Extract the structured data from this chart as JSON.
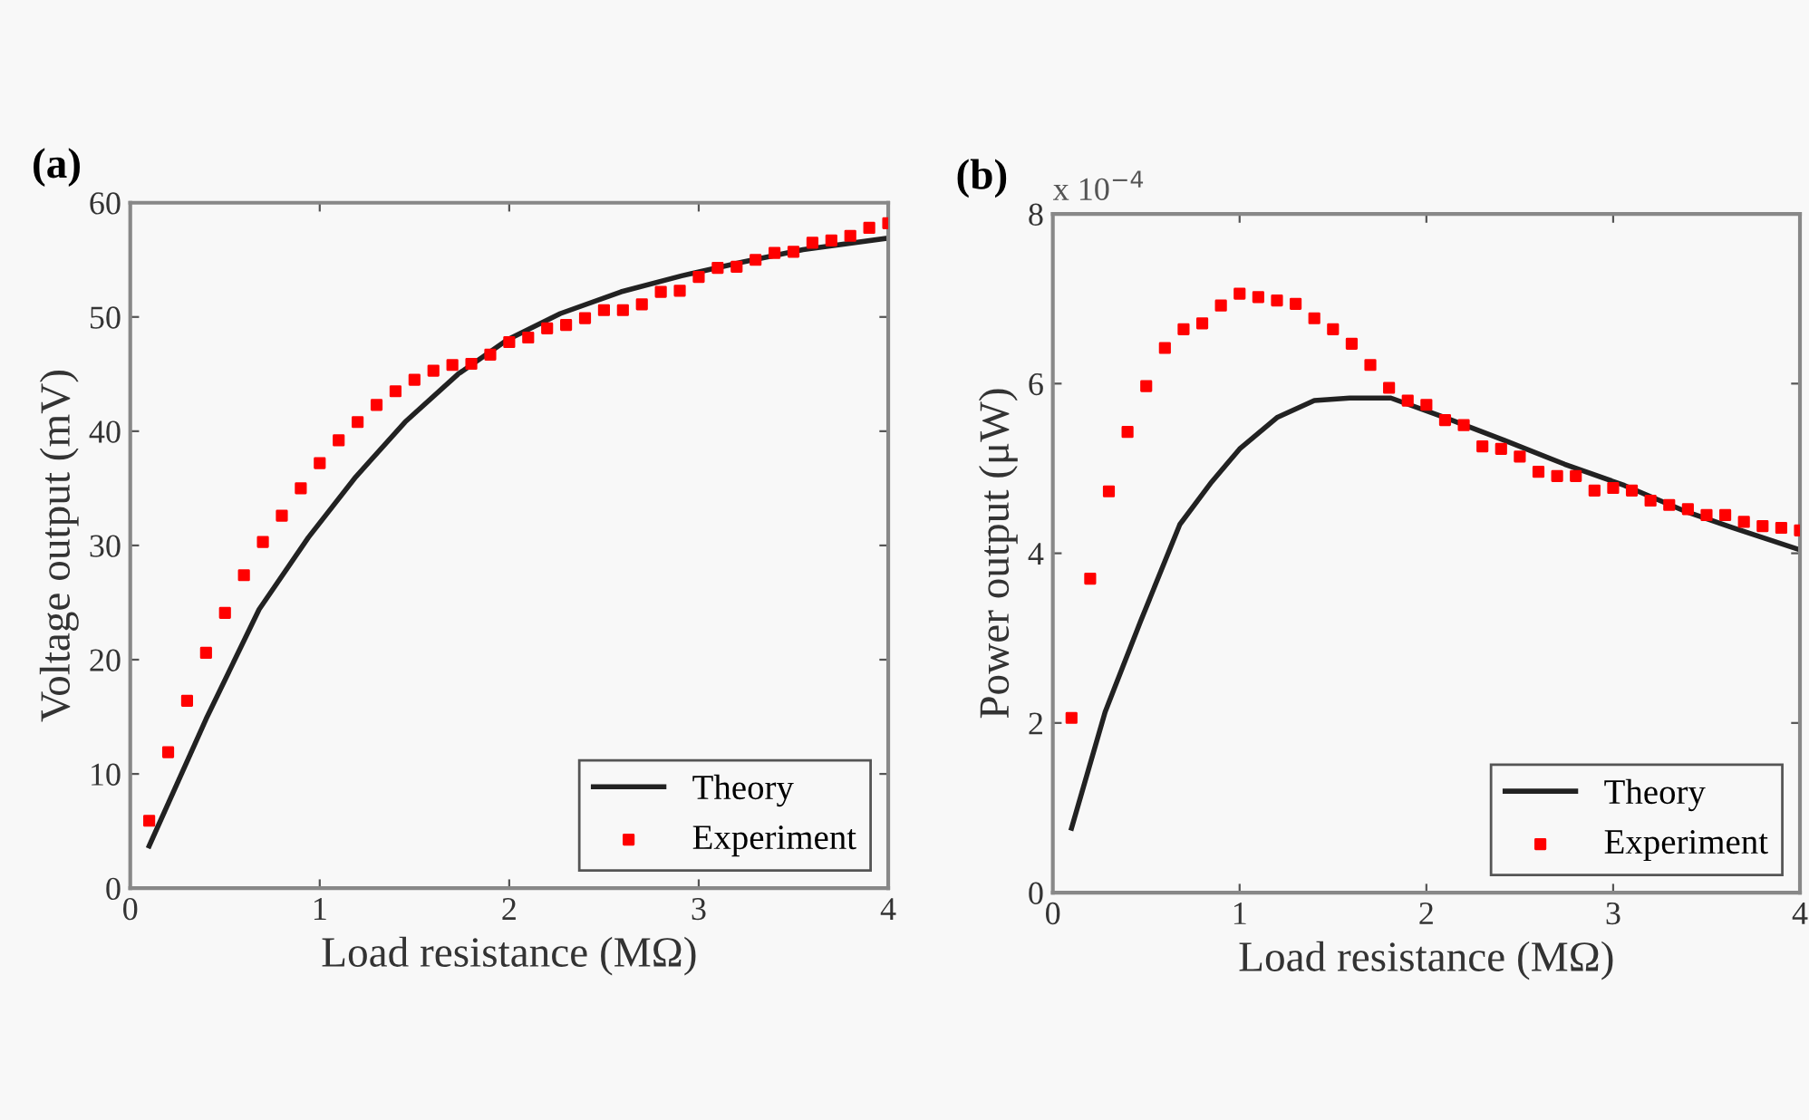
{
  "chart_data": [
    {
      "type": "line",
      "title": "(a)",
      "xlabel": "Load resistance (MΩ)",
      "ylabel": "Voltage output (mV)",
      "xlim": [
        0,
        4
      ],
      "xticks": [
        0,
        1,
        2,
        3,
        4
      ],
      "ylim": [
        0,
        60
      ],
      "yticks": [
        0,
        10,
        20,
        30,
        40,
        50,
        60
      ],
      "legend": "bottom right",
      "grid": false,
      "series": [
        {
          "name": "Theory",
          "color": "#222222",
          "marker": "none",
          "line_style": "solid",
          "x": [
            0.1,
            0.4,
            0.68,
            0.94,
            1.19,
            1.45,
            1.73,
            1.99,
            2.27,
            2.59,
            2.91,
            3.23,
            3.55,
            4.0
          ],
          "values": [
            3.7,
            14.8,
            24.4,
            30.7,
            36.0,
            40.8,
            45.0,
            48.0,
            50.3,
            52.2,
            53.6,
            54.8,
            55.9,
            56.9
          ]
        },
        {
          "name": "Experiment",
          "type": "scatter",
          "color": "#ff0000",
          "marker": "square",
          "x": [
            0.1,
            0.2,
            0.3,
            0.4,
            0.5,
            0.6,
            0.7,
            0.8,
            0.9,
            1.0,
            1.1,
            1.2,
            1.3,
            1.4,
            1.5,
            1.6,
            1.7,
            1.8,
            1.9,
            2.0,
            2.1,
            2.2,
            2.3,
            2.4,
            2.5,
            2.6,
            2.7,
            2.8,
            2.9,
            3.0,
            3.1,
            3.2,
            3.3,
            3.4,
            3.5,
            3.6,
            3.7,
            3.8,
            3.9,
            4.0
          ],
          "values": [
            5.9,
            11.9,
            16.4,
            20.6,
            24.1,
            27.4,
            30.3,
            32.6,
            35.0,
            37.2,
            39.2,
            40.8,
            42.3,
            43.5,
            44.5,
            45.3,
            45.8,
            45.9,
            46.7,
            47.8,
            48.2,
            49.0,
            49.3,
            49.9,
            50.6,
            50.6,
            51.1,
            52.2,
            52.3,
            53.5,
            54.3,
            54.4,
            55.0,
            55.6,
            55.7,
            56.5,
            56.7,
            57.1,
            57.8,
            58.2
          ]
        }
      ]
    },
    {
      "type": "line",
      "title": "(b)",
      "xlabel": "Load resistance (MΩ)",
      "ylabel": "Power output (μW)",
      "annotations": [
        "x 10$^{−4}$"
      ],
      "xlim": [
        0,
        4
      ],
      "xticks": [
        0,
        1,
        2,
        3,
        4
      ],
      "ylim": [
        0,
        8
      ],
      "yticks": [
        0,
        2,
        4,
        6,
        8
      ],
      "legend": "bottom right",
      "grid": false,
      "series": [
        {
          "name": "Theory",
          "color": "#222222",
          "marker": "none",
          "line_style": "solid",
          "x": [
            0.1,
            0.28,
            0.47,
            0.68,
            0.85,
            1.0,
            1.2,
            1.4,
            1.59,
            1.81,
            2.1,
            2.42,
            2.74,
            3.06,
            3.38,
            3.64,
            4.0
          ],
          "values": [
            0.76,
            2.13,
            3.2,
            4.34,
            4.84,
            5.23,
            5.6,
            5.8,
            5.83,
            5.83,
            5.6,
            5.33,
            5.05,
            4.8,
            4.5,
            4.3,
            4.04
          ]
        },
        {
          "name": "Experiment",
          "type": "scatter",
          "color": "#ff0000",
          "marker": "square",
          "x": [
            0.1,
            0.2,
            0.3,
            0.4,
            0.5,
            0.6,
            0.7,
            0.8,
            0.9,
            1.0,
            1.1,
            1.2,
            1.3,
            1.4,
            1.5,
            1.6,
            1.7,
            1.8,
            1.9,
            2.0,
            2.1,
            2.2,
            2.3,
            2.4,
            2.5,
            2.6,
            2.7,
            2.8,
            2.9,
            3.0,
            3.1,
            3.2,
            3.3,
            3.4,
            3.5,
            3.6,
            3.7,
            3.8,
            3.9,
            4.0
          ],
          "values": [
            2.06,
            3.7,
            4.73,
            5.43,
            5.97,
            6.42,
            6.64,
            6.71,
            6.92,
            7.06,
            7.02,
            6.98,
            6.94,
            6.77,
            6.64,
            6.47,
            6.22,
            5.95,
            5.8,
            5.75,
            5.57,
            5.51,
            5.26,
            5.23,
            5.14,
            4.96,
            4.91,
            4.91,
            4.74,
            4.77,
            4.74,
            4.62,
            4.57,
            4.52,
            4.45,
            4.45,
            4.37,
            4.32,
            4.3,
            4.27
          ]
        }
      ]
    }
  ]
}
